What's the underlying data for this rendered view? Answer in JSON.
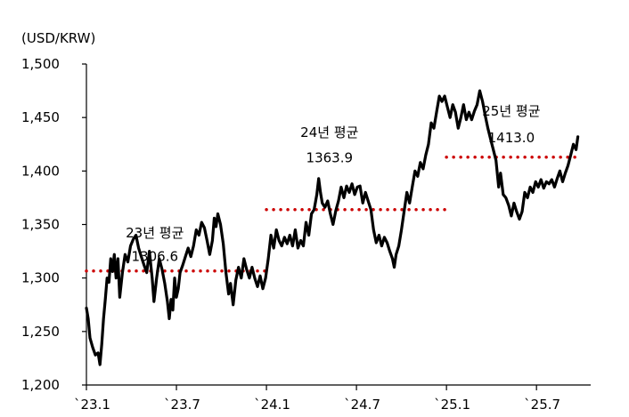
{
  "chart_data": {
    "type": "line",
    "unit_label": "(USD/KRW)",
    "title": "",
    "xlabel": "",
    "ylabel": "",
    "ylim": [
      1200,
      1500
    ],
    "y_ticks": [
      1200,
      1250,
      1300,
      1350,
      1400,
      1450,
      1500
    ],
    "y_tick_labels": [
      "1,200",
      "1,250",
      "1,300",
      "1,350",
      "1,400",
      "1,450",
      "1,500"
    ],
    "x_ticks": [
      {
        "label": "`23.1",
        "t": 0
      },
      {
        "label": "`23.7",
        "t": 0.5
      },
      {
        "label": "`24.1",
        "t": 1.0
      },
      {
        "label": "`24.7",
        "t": 1.5
      },
      {
        "label": "`25.1",
        "t": 2.0
      },
      {
        "label": "`25.7",
        "t": 2.5
      }
    ],
    "xlim": [
      0,
      2.9
    ],
    "line_color": "#000000",
    "average_color": "#cc0000",
    "series": [
      {
        "values": [
          [
            0.0,
            1272
          ],
          [
            0.01,
            1262
          ],
          [
            0.02,
            1244
          ],
          [
            0.035,
            1235
          ],
          [
            0.05,
            1228
          ],
          [
            0.065,
            1230
          ],
          [
            0.075,
            1219
          ],
          [
            0.085,
            1238
          ],
          [
            0.095,
            1262
          ],
          [
            0.105,
            1280
          ],
          [
            0.115,
            1300
          ],
          [
            0.125,
            1296
          ],
          [
            0.135,
            1318
          ],
          [
            0.145,
            1306
          ],
          [
            0.155,
            1322
          ],
          [
            0.165,
            1300
          ],
          [
            0.175,
            1318
          ],
          [
            0.185,
            1282
          ],
          [
            0.2,
            1305
          ],
          [
            0.215,
            1322
          ],
          [
            0.23,
            1315
          ],
          [
            0.245,
            1330
          ],
          [
            0.26,
            1336
          ],
          [
            0.275,
            1340
          ],
          [
            0.29,
            1328
          ],
          [
            0.305,
            1320
          ],
          [
            0.32,
            1312
          ],
          [
            0.335,
            1305
          ],
          [
            0.35,
            1325
          ],
          [
            0.365,
            1300
          ],
          [
            0.375,
            1278
          ],
          [
            0.39,
            1300
          ],
          [
            0.405,
            1318
          ],
          [
            0.42,
            1308
          ],
          [
            0.435,
            1295
          ],
          [
            0.45,
            1278
          ],
          [
            0.46,
            1262
          ],
          [
            0.47,
            1280
          ],
          [
            0.48,
            1270
          ],
          [
            0.49,
            1300
          ],
          [
            0.5,
            1282
          ],
          [
            0.51,
            1290
          ],
          [
            0.52,
            1305
          ],
          [
            0.535,
            1312
          ],
          [
            0.55,
            1320
          ],
          [
            0.565,
            1328
          ],
          [
            0.58,
            1320
          ],
          [
            0.595,
            1330
          ],
          [
            0.61,
            1345
          ],
          [
            0.625,
            1340
          ],
          [
            0.64,
            1352
          ],
          [
            0.655,
            1347
          ],
          [
            0.67,
            1335
          ],
          [
            0.685,
            1322
          ],
          [
            0.7,
            1335
          ],
          [
            0.71,
            1356
          ],
          [
            0.72,
            1348
          ],
          [
            0.73,
            1360
          ],
          [
            0.745,
            1350
          ],
          [
            0.76,
            1332
          ],
          [
            0.775,
            1305
          ],
          [
            0.79,
            1285
          ],
          [
            0.8,
            1295
          ],
          [
            0.815,
            1275
          ],
          [
            0.83,
            1298
          ],
          [
            0.845,
            1310
          ],
          [
            0.86,
            1300
          ],
          [
            0.875,
            1318
          ],
          [
            0.89,
            1308
          ],
          [
            0.905,
            1300
          ],
          [
            0.92,
            1310
          ],
          [
            0.935,
            1300
          ],
          [
            0.95,
            1292
          ],
          [
            0.965,
            1302
          ],
          [
            0.98,
            1290
          ],
          [
            0.995,
            1300
          ],
          [
            1.01,
            1318
          ],
          [
            1.025,
            1340
          ],
          [
            1.04,
            1328
          ],
          [
            1.055,
            1345
          ],
          [
            1.07,
            1335
          ],
          [
            1.085,
            1330
          ],
          [
            1.1,
            1338
          ],
          [
            1.115,
            1332
          ],
          [
            1.13,
            1340
          ],
          [
            1.145,
            1330
          ],
          [
            1.16,
            1345
          ],
          [
            1.175,
            1328
          ],
          [
            1.19,
            1335
          ],
          [
            1.205,
            1330
          ],
          [
            1.22,
            1352
          ],
          [
            1.235,
            1340
          ],
          [
            1.25,
            1360
          ],
          [
            1.265,
            1364
          ],
          [
            1.28,
            1378
          ],
          [
            1.29,
            1393
          ],
          [
            1.3,
            1380
          ],
          [
            1.31,
            1370
          ],
          [
            1.325,
            1366
          ],
          [
            1.34,
            1372
          ],
          [
            1.355,
            1360
          ],
          [
            1.37,
            1350
          ],
          [
            1.385,
            1363
          ],
          [
            1.4,
            1372
          ],
          [
            1.415,
            1385
          ],
          [
            1.43,
            1375
          ],
          [
            1.445,
            1386
          ],
          [
            1.46,
            1380
          ],
          [
            1.475,
            1388
          ],
          [
            1.49,
            1378
          ],
          [
            1.505,
            1385
          ],
          [
            1.52,
            1386
          ],
          [
            1.535,
            1370
          ],
          [
            1.55,
            1380
          ],
          [
            1.565,
            1372
          ],
          [
            1.58,
            1364
          ],
          [
            1.595,
            1345
          ],
          [
            1.61,
            1333
          ],
          [
            1.625,
            1340
          ],
          [
            1.64,
            1330
          ],
          [
            1.655,
            1338
          ],
          [
            1.67,
            1333
          ],
          [
            1.685,
            1325
          ],
          [
            1.7,
            1318
          ],
          [
            1.71,
            1310
          ],
          [
            1.72,
            1322
          ],
          [
            1.735,
            1330
          ],
          [
            1.75,
            1345
          ],
          [
            1.765,
            1363
          ],
          [
            1.78,
            1380
          ],
          [
            1.795,
            1370
          ],
          [
            1.81,
            1385
          ],
          [
            1.825,
            1400
          ],
          [
            1.84,
            1395
          ],
          [
            1.855,
            1408
          ],
          [
            1.87,
            1402
          ],
          [
            1.885,
            1415
          ],
          [
            1.9,
            1425
          ],
          [
            1.915,
            1445
          ],
          [
            1.93,
            1440
          ],
          [
            1.945,
            1455
          ],
          [
            1.96,
            1470
          ],
          [
            1.975,
            1465
          ],
          [
            1.99,
            1470
          ],
          [
            2.005,
            1460
          ],
          [
            2.02,
            1450
          ],
          [
            2.035,
            1462
          ],
          [
            2.05,
            1455
          ],
          [
            2.065,
            1440
          ],
          [
            2.08,
            1450
          ],
          [
            2.095,
            1462
          ],
          [
            2.11,
            1448
          ],
          [
            2.125,
            1455
          ],
          [
            2.14,
            1448
          ],
          [
            2.155,
            1456
          ],
          [
            2.17,
            1462
          ],
          [
            2.185,
            1475
          ],
          [
            2.2,
            1465
          ],
          [
            2.215,
            1452
          ],
          [
            2.23,
            1440
          ],
          [
            2.245,
            1430
          ],
          [
            2.26,
            1420
          ],
          [
            2.275,
            1410
          ],
          [
            2.29,
            1385
          ],
          [
            2.3,
            1398
          ],
          [
            2.315,
            1378
          ],
          [
            2.33,
            1375
          ],
          [
            2.345,
            1368
          ],
          [
            2.36,
            1358
          ],
          [
            2.375,
            1370
          ],
          [
            2.39,
            1362
          ],
          [
            2.405,
            1355
          ],
          [
            2.42,
            1362
          ],
          [
            2.435,
            1380
          ],
          [
            2.45,
            1375
          ],
          [
            2.465,
            1385
          ],
          [
            2.48,
            1380
          ],
          [
            2.495,
            1390
          ],
          [
            2.51,
            1385
          ],
          [
            2.525,
            1392
          ],
          [
            2.54,
            1384
          ],
          [
            2.555,
            1390
          ],
          [
            2.57,
            1388
          ],
          [
            2.585,
            1392
          ],
          [
            2.6,
            1385
          ],
          [
            2.615,
            1393
          ],
          [
            2.63,
            1400
          ],
          [
            2.645,
            1390
          ],
          [
            2.66,
            1398
          ],
          [
            2.675,
            1405
          ],
          [
            2.69,
            1415
          ],
          [
            2.705,
            1425
          ],
          [
            2.72,
            1420
          ],
          [
            2.73,
            1432
          ]
        ]
      }
    ],
    "annotations": [
      {
        "year_label": "23년 평균",
        "value_label": "1306.6",
        "value": 1306.6,
        "x_start": 0.0,
        "x_end": 1.0
      },
      {
        "year_label": "24년 평균",
        "value_label": "1363.9",
        "value": 1363.9,
        "x_start": 1.0,
        "x_end": 2.0
      },
      {
        "year_label": "25년 평균",
        "value_label": "1413.0",
        "value": 1413.0,
        "x_start": 2.0,
        "x_end": 2.74
      }
    ]
  }
}
